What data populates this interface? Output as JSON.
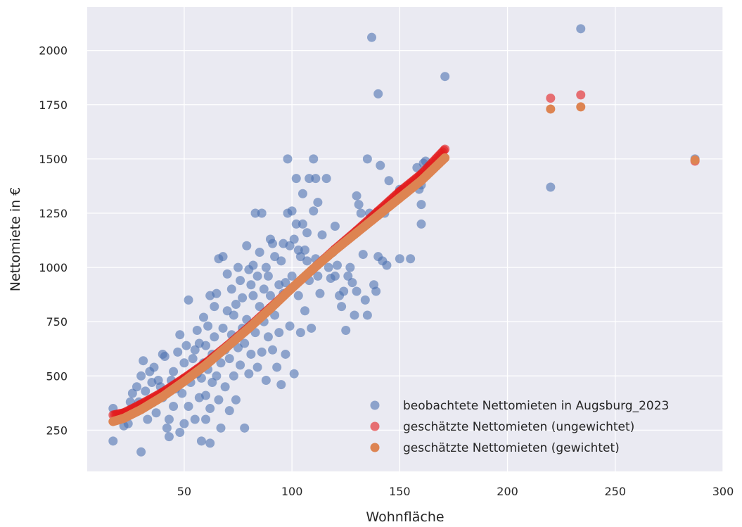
{
  "chart_data": {
    "type": "scatter",
    "title": "",
    "xlabel": "Wohnfläche",
    "ylabel": "Nettomiete in €",
    "xlim": [
      5,
      300
    ],
    "ylim": [
      60,
      2200
    ],
    "xticks": [
      50,
      100,
      150,
      200,
      250,
      300
    ],
    "yticks": [
      250,
      500,
      750,
      1000,
      1250,
      1500,
      1750,
      2000
    ],
    "grid": true,
    "legend_position": "bottom-right",
    "background": "#eaeaf2",
    "series": [
      {
        "name": "beobachtete Nettomieten in Augsburg_2023",
        "color": "#4c72b0",
        "alpha": 0.6,
        "kind": "observed",
        "points": [
          [
            17,
            350
          ],
          [
            17,
            200
          ],
          [
            22,
            270
          ],
          [
            24,
            280
          ],
          [
            25,
            380
          ],
          [
            26,
            420
          ],
          [
            28,
            450
          ],
          [
            29,
            380
          ],
          [
            30,
            150
          ],
          [
            30,
            500
          ],
          [
            31,
            570
          ],
          [
            32,
            430
          ],
          [
            33,
            300
          ],
          [
            34,
            520
          ],
          [
            35,
            470
          ],
          [
            36,
            540
          ],
          [
            37,
            330
          ],
          [
            38,
            480
          ],
          [
            39,
            450
          ],
          [
            40,
            600
          ],
          [
            40,
            400
          ],
          [
            41,
            590
          ],
          [
            42,
            260
          ],
          [
            43,
            300
          ],
          [
            43,
            220
          ],
          [
            44,
            480
          ],
          [
            45,
            520
          ],
          [
            45,
            360
          ],
          [
            46,
            440
          ],
          [
            47,
            610
          ],
          [
            48,
            240
          ],
          [
            48,
            690
          ],
          [
            49,
            420
          ],
          [
            50,
            280
          ],
          [
            50,
            560
          ],
          [
            51,
            640
          ],
          [
            52,
            850
          ],
          [
            52,
            360
          ],
          [
            53,
            470
          ],
          [
            54,
            580
          ],
          [
            55,
            620
          ],
          [
            55,
            300
          ],
          [
            56,
            710
          ],
          [
            56,
            510
          ],
          [
            57,
            650
          ],
          [
            57,
            400
          ],
          [
            58,
            200
          ],
          [
            58,
            490
          ],
          [
            59,
            560
          ],
          [
            59,
            770
          ],
          [
            60,
            300
          ],
          [
            60,
            640
          ],
          [
            60,
            410
          ],
          [
            61,
            530
          ],
          [
            61,
            730
          ],
          [
            62,
            870
          ],
          [
            62,
            190
          ],
          [
            62,
            350
          ],
          [
            63,
            600
          ],
          [
            63,
            470
          ],
          [
            64,
            680
          ],
          [
            64,
            820
          ],
          [
            65,
            500
          ],
          [
            65,
            880
          ],
          [
            66,
            390
          ],
          [
            66,
            1040
          ],
          [
            67,
            560
          ],
          [
            67,
            260
          ],
          [
            68,
            1050
          ],
          [
            68,
            720
          ],
          [
            69,
            620
          ],
          [
            69,
            450
          ],
          [
            70,
            970
          ],
          [
            70,
            800
          ],
          [
            71,
            580
          ],
          [
            71,
            340
          ],
          [
            72,
            900
          ],
          [
            72,
            690
          ],
          [
            73,
            500
          ],
          [
            73,
            780
          ],
          [
            74,
            830
          ],
          [
            74,
            390
          ],
          [
            75,
            1000
          ],
          [
            75,
            630
          ],
          [
            76,
            940
          ],
          [
            76,
            550
          ],
          [
            77,
            720
          ],
          [
            77,
            860
          ],
          [
            78,
            650
          ],
          [
            78,
            260
          ],
          [
            79,
            1100
          ],
          [
            79,
            760
          ],
          [
            80,
            990
          ],
          [
            80,
            510
          ],
          [
            81,
            920
          ],
          [
            81,
            600
          ],
          [
            82,
            1010
          ],
          [
            82,
            870
          ],
          [
            83,
            1250
          ],
          [
            83,
            700
          ],
          [
            84,
            960
          ],
          [
            84,
            540
          ],
          [
            85,
            820
          ],
          [
            85,
            1070
          ],
          [
            86,
            1250
          ],
          [
            86,
            610
          ],
          [
            87,
            900
          ],
          [
            87,
            750
          ],
          [
            88,
            480
          ],
          [
            88,
            1000
          ],
          [
            89,
            960
          ],
          [
            89,
            680
          ],
          [
            90,
            1130
          ],
          [
            90,
            870
          ],
          [
            91,
            620
          ],
          [
            91,
            1110
          ],
          [
            92,
            1050
          ],
          [
            92,
            780
          ],
          [
            93,
            840
          ],
          [
            93,
            540
          ],
          [
            94,
            700
          ],
          [
            94,
            920
          ],
          [
            95,
            1030
          ],
          [
            95,
            460
          ],
          [
            96,
            1110
          ],
          [
            96,
            880
          ],
          [
            97,
            600
          ],
          [
            97,
            930
          ],
          [
            98,
            1500
          ],
          [
            98,
            1250
          ],
          [
            99,
            1100
          ],
          [
            99,
            730
          ],
          [
            100,
            1260
          ],
          [
            100,
            960
          ],
          [
            101,
            1130
          ],
          [
            101,
            510
          ],
          [
            102,
            1410
          ],
          [
            102,
            1200
          ],
          [
            103,
            1080
          ],
          [
            103,
            870
          ],
          [
            104,
            1050
          ],
          [
            104,
            700
          ],
          [
            105,
            1340
          ],
          [
            105,
            1200
          ],
          [
            106,
            1080
          ],
          [
            106,
            800
          ],
          [
            107,
            1160
          ],
          [
            107,
            1030
          ],
          [
            108,
            940
          ],
          [
            108,
            1410
          ],
          [
            109,
            720
          ],
          [
            110,
            1500
          ],
          [
            110,
            1260
          ],
          [
            111,
            1410
          ],
          [
            111,
            1040
          ],
          [
            112,
            1300
          ],
          [
            112,
            960
          ],
          [
            113,
            880
          ],
          [
            114,
            1150
          ],
          [
            115,
            1040
          ],
          [
            116,
            1410
          ],
          [
            117,
            1000
          ],
          [
            118,
            950
          ],
          [
            119,
            1070
          ],
          [
            120,
            1190
          ],
          [
            120,
            960
          ],
          [
            121,
            1010
          ],
          [
            122,
            870
          ],
          [
            123,
            820
          ],
          [
            124,
            890
          ],
          [
            125,
            710
          ],
          [
            126,
            960
          ],
          [
            127,
            1000
          ],
          [
            128,
            930
          ],
          [
            129,
            780
          ],
          [
            130,
            1330
          ],
          [
            130,
            890
          ],
          [
            131,
            1290
          ],
          [
            132,
            1250
          ],
          [
            133,
            1060
          ],
          [
            134,
            850
          ],
          [
            135,
            1500
          ],
          [
            135,
            780
          ],
          [
            136,
            1250
          ],
          [
            137,
            2060
          ],
          [
            138,
            920
          ],
          [
            139,
            890
          ],
          [
            140,
            1050
          ],
          [
            140,
            1800
          ],
          [
            141,
            1470
          ],
          [
            142,
            1030
          ],
          [
            143,
            1250
          ],
          [
            144,
            1010
          ],
          [
            145,
            1400
          ],
          [
            150,
            1040
          ],
          [
            150,
            1360
          ],
          [
            155,
            1040
          ],
          [
            158,
            1460
          ],
          [
            159,
            1360
          ],
          [
            160,
            1380
          ],
          [
            160,
            1290
          ],
          [
            160,
            1200
          ],
          [
            161,
            1480
          ],
          [
            162,
            1490
          ],
          [
            171,
            1880
          ],
          [
            220,
            1370
          ],
          [
            234,
            2100
          ],
          [
            287,
            1500
          ]
        ]
      },
      {
        "name": "geschätzte Nettomieten (ungewichtet)",
        "color": "#e31a1c",
        "alpha": 0.6,
        "kind": "fit",
        "fit_points": [
          [
            17,
            320
          ],
          [
            22,
            330
          ],
          [
            30,
            370
          ],
          [
            40,
            425
          ],
          [
            50,
            490
          ],
          [
            60,
            560
          ],
          [
            70,
            640
          ],
          [
            80,
            725
          ],
          [
            90,
            815
          ],
          [
            100,
            905
          ],
          [
            110,
            995
          ],
          [
            120,
            1085
          ],
          [
            130,
            1170
          ],
          [
            140,
            1260
          ],
          [
            150,
            1350
          ],
          [
            160,
            1430
          ],
          [
            171,
            1545
          ],
          [
            220,
            1780
          ],
          [
            234,
            1795
          ],
          [
            287,
            1490
          ]
        ]
      },
      {
        "name": "geschätzte Nettomieten (gewichtet)",
        "color": "#dd8452",
        "alpha": 1.0,
        "kind": "fit",
        "fit_points": [
          [
            17,
            290
          ],
          [
            22,
            305
          ],
          [
            30,
            345
          ],
          [
            40,
            405
          ],
          [
            50,
            475
          ],
          [
            60,
            550
          ],
          [
            70,
            635
          ],
          [
            80,
            720
          ],
          [
            90,
            810
          ],
          [
            100,
            905
          ],
          [
            110,
            995
          ],
          [
            120,
            1080
          ],
          [
            130,
            1160
          ],
          [
            140,
            1240
          ],
          [
            150,
            1320
          ],
          [
            160,
            1400
          ],
          [
            171,
            1505
          ],
          [
            220,
            1730
          ],
          [
            234,
            1740
          ],
          [
            287,
            1495
          ]
        ]
      }
    ]
  }
}
